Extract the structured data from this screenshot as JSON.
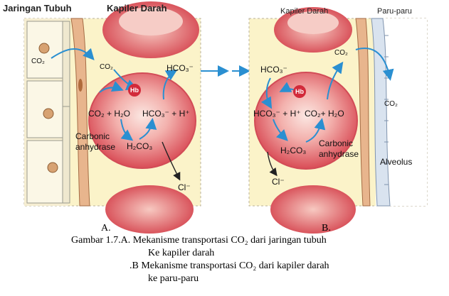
{
  "panel_a": {
    "tissue_label": "Jaringan Tubuh",
    "capillary_label": "Kapiler Darah",
    "co2_tissue": "CO₂",
    "co2_capillary": "CO₂",
    "hco3_out": "HCO₃⁻",
    "hb": "Hb",
    "reaction_left": "CO₂ + H₂O",
    "reaction_right": "HCO₃⁻ + H⁺",
    "h2co3": "H₂CO₃",
    "enzyme_line1": "Carbonic",
    "enzyme_line2": "anhydrase",
    "chloride": "Cl⁻",
    "letter": "A."
  },
  "panel_b": {
    "capillary_label": "Kapiler Darah",
    "lung_label": "Paru-paru",
    "hco3_in": "HCO₃⁻",
    "hb": "Hb",
    "reaction_left": "HCO₃⁻ + H⁺",
    "reaction_right": "CO₂+ H₂O",
    "co2_capillary": "CO₂",
    "co2_lung": "CO₂",
    "h2co3": "H₂CO₃",
    "enzyme_line1": "Carbonic",
    "enzyme_line2": "anhydrase",
    "chloride": "Cl⁻",
    "alveolus": "Alveolus",
    "letter": "B."
  },
  "caption": {
    "line1": "Gambar 1.7.A. Mekanisme transportasi CO₂ dari jaringan tubuh",
    "line2": "Ke kapiler darah",
    "line3": ".B Mekanisme transportasi CO₂ dari kapiler darah",
    "line4": "ke paru-paru"
  },
  "colors": {
    "tissue": "#f6eed2",
    "capillary": "#fbf3c9",
    "vessel_wall": "#e8b58d",
    "rbc": "#ec7b80",
    "arrow": "#2a8fd1",
    "lung": "#d9e3ef"
  }
}
